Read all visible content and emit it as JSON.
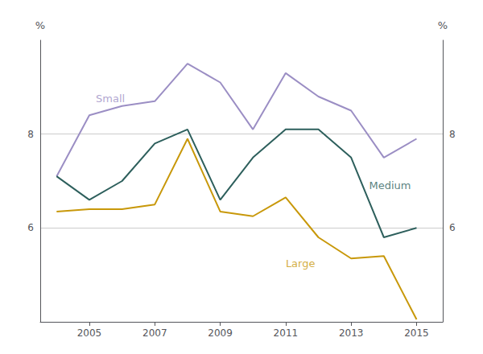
{
  "chart_data": {
    "type": "line",
    "x": [
      2004,
      2005,
      2006,
      2007,
      2008,
      2009,
      2010,
      2011,
      2012,
      2013,
      2014,
      2015
    ],
    "series": [
      {
        "color": "#9b8ec4",
        "values": [
          7.1,
          8.4,
          8.6,
          8.7,
          9.5,
          9.1,
          8.1,
          9.3,
          8.8,
          8.5,
          7.5,
          7.9
        ]
      },
      {
        "color": "#2d5f5c",
        "values": [
          7.1,
          6.6,
          7.0,
          7.8,
          8.1,
          6.6,
          7.5,
          8.1,
          8.1,
          7.5,
          5.8,
          6.0
        ]
      },
      {
        "color": "#c8980a",
        "values": [
          6.35,
          6.4,
          6.4,
          6.5,
          7.9,
          6.35,
          6.25,
          6.65,
          5.8,
          5.35,
          5.4,
          4.05
        ]
      }
    ],
    "xlim": [
      2003.5,
      2015.8
    ],
    "xticks": [
      2005,
      2007,
      2009,
      2011,
      2013,
      2015
    ],
    "ylim": [
      4,
      10
    ],
    "yticks": [
      6,
      8
    ],
    "y2lim": [
      4,
      10
    ],
    "y2ticks": [
      6,
      8
    ],
    "ylabel": "%",
    "y2label": "%",
    "grid": true,
    "annotations": [
      {
        "text": "Small",
        "x": 2005.2,
        "y": 8.75,
        "color": "#9b8ec4"
      },
      {
        "text": "Medium",
        "x": 2013.55,
        "y": 6.9,
        "color": "#2d5f5c"
      },
      {
        "text": "Large",
        "x": 2011.0,
        "y": 5.25,
        "color": "#c8980a"
      }
    ]
  }
}
